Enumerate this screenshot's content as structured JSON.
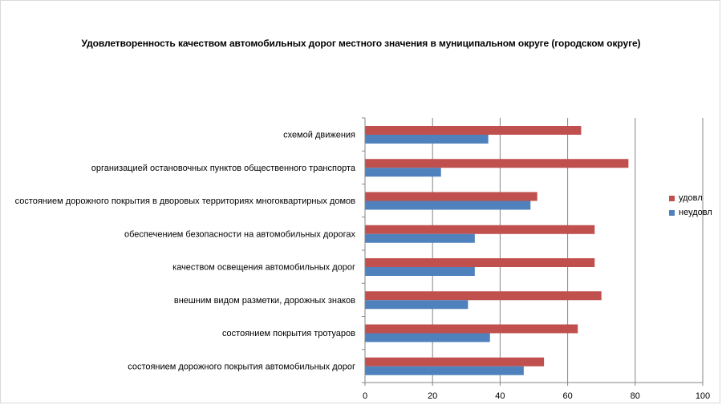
{
  "chart_data": {
    "type": "bar",
    "orientation": "horizontal",
    "title": "Удовлетворенность качеством автомобильных дорог местного значения в муниципальном округе (городском округе)",
    "categories": [
      "схемой движения",
      "организацией остановочных пунктов общественного транспорта",
      "состоянием дорожного покрытия в дворовых территориях многоквартирных домов",
      "обеспечением безопасности на автомобильных дорогах",
      "качеством освещения автомобильных дорог",
      "внешним видом разметки, дорожных знаков",
      "состоянием покрытия тротуаров",
      "состоянием дорожного покрытия автомобильных дорог"
    ],
    "series": [
      {
        "name": "удовл",
        "color": "#c0504d",
        "values": [
          64,
          78,
          51,
          68,
          68,
          70,
          63,
          53
        ]
      },
      {
        "name": "неудовл",
        "color": "#4f81bd",
        "values": [
          36.5,
          22.5,
          49,
          32.5,
          32.5,
          30.5,
          37,
          47
        ]
      }
    ],
    "xlim": [
      0,
      100
    ],
    "xticks": [
      0,
      20,
      40,
      60,
      80,
      100
    ],
    "grid": true,
    "legend_position": "right"
  }
}
